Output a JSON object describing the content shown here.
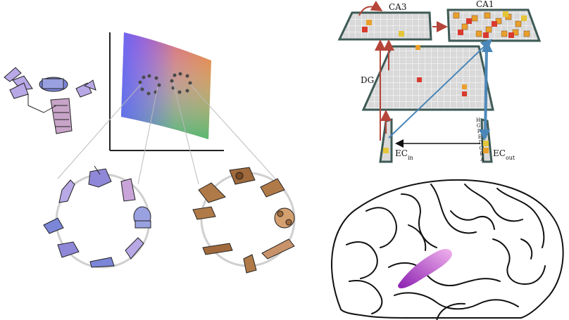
{
  "hippocampus": {
    "regions": {
      "ca3": "CA3",
      "ca1": "CA1",
      "dg": "DG",
      "ec_in_main": "EC",
      "ec_in_sub": "in",
      "ec_out_main": "EC",
      "ec_out_sub": "out"
    },
    "ec_out_letters": [
      "H",
      "G",
      "F",
      "E",
      "D",
      "C",
      "B",
      "A"
    ],
    "colors": {
      "grid_fill": "#d9d9d9",
      "grid_border": "#3e5a55",
      "red_arrow": "#b5443a",
      "blue_arrow": "#4a86b8",
      "active_red": "#d83a2e",
      "active_orange": "#e9a02a",
      "active_yellow": "#e4c638"
    }
  },
  "color_space": {
    "colors": {
      "magenta": "#e043e0",
      "blue": "#5c6cf0",
      "orange": "#e8772e",
      "green": "#3ec47a"
    },
    "clusters": [
      "left-cluster",
      "right-cluster"
    ]
  },
  "objects": {
    "purple_ring_color": "#a995d8",
    "brown_ring_color": "#b07a48"
  },
  "brain": {
    "highlight_color": "#b12dc8"
  }
}
